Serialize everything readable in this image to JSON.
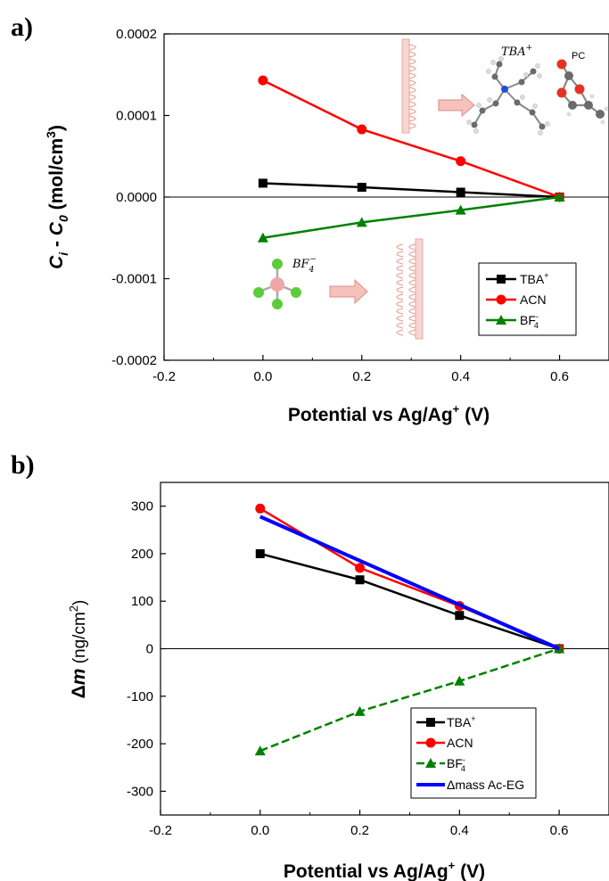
{
  "chart_data": [
    {
      "panel": "a)",
      "type": "line",
      "xlabel": "Potential vs Ag/Ag",
      "xlabel_sup": "+",
      "xlabel_end": " (V)",
      "ylabel_parts": [
        "C",
        "i",
        " - ",
        "C",
        "0",
        " (mol/cm",
        "3",
        ")"
      ],
      "xlim": [
        -0.2,
        0.7
      ],
      "ylim": [
        -0.0002,
        0.0002
      ],
      "xticks": [
        -0.2,
        0.0,
        0.2,
        0.4,
        0.6
      ],
      "xtick_labels": [
        "-0.2",
        "0.0",
        "0.2",
        "0.4",
        "0.6"
      ],
      "yticks": [
        -0.0002,
        -0.0001,
        0.0,
        0.0001,
        0.0002
      ],
      "ytick_labels": [
        "-0.0002",
        "-0.0001",
        "0.0000",
        "0.0001",
        "0.0002"
      ],
      "zero_line": true,
      "legend_position": "lower-right",
      "series": [
        {
          "name": "TBA",
          "name_sup": "+",
          "name_sub": "",
          "color": "#000000",
          "marker": "square",
          "x": [
            0.0,
            0.2,
            0.4,
            0.6
          ],
          "y": [
            1.7e-05,
            1.2e-05,
            6e-06,
            0.0
          ]
        },
        {
          "name": "ACN",
          "name_sup": "",
          "name_sub": "",
          "color": "#ff0000",
          "marker": "circle",
          "x": [
            0.0,
            0.2,
            0.4,
            0.6
          ],
          "y": [
            0.000143,
            8.3e-05,
            4.4e-05,
            0.0
          ]
        },
        {
          "name": "BF",
          "name_sup": "-",
          "name_sub": "4",
          "color": "#008000",
          "marker": "triangle",
          "x": [
            0.0,
            0.2,
            0.4,
            0.6
          ],
          "y": [
            -5e-05,
            -3.1e-05,
            -1.6e-05,
            0.0
          ]
        }
      ],
      "insets": {
        "tba_label": "TBA",
        "tba_sup": "+",
        "pc_label": "PC",
        "bf4_label": "BF",
        "bf4_sub": "4",
        "bf4_sup": "−"
      }
    },
    {
      "panel": "b)",
      "type": "line",
      "xlabel": "Potential vs Ag/Ag",
      "xlabel_sup": "+",
      "xlabel_end": " (V)",
      "ylabel_parts": [
        "Δ",
        "m",
        " (ng/cm",
        "2",
        ")"
      ],
      "xlim": [
        -0.2,
        0.7
      ],
      "ylim": [
        -350,
        350
      ],
      "xticks": [
        -0.2,
        0.0,
        0.2,
        0.4,
        0.6
      ],
      "xtick_labels": [
        "-0.2",
        "0.0",
        "0.2",
        "0.4",
        "0.6"
      ],
      "yticks": [
        -300,
        -200,
        -100,
        0,
        100,
        200,
        300
      ],
      "ytick_labels": [
        "-300",
        "-200",
        "-100",
        "0",
        "100",
        "200",
        "300"
      ],
      "zero_line": true,
      "legend_position": "lower-right",
      "series": [
        {
          "name": "TBA",
          "name_sup": "+",
          "name_sub": "",
          "color": "#000000",
          "marker": "square",
          "x": [
            0.0,
            0.2,
            0.4,
            0.6
          ],
          "y": [
            200,
            145,
            70,
            0
          ]
        },
        {
          "name": "ACN",
          "name_sup": "",
          "name_sub": "",
          "color": "#ff0000",
          "marker": "circle",
          "x": [
            0.0,
            0.2,
            0.4,
            0.6
          ],
          "y": [
            295,
            170,
            90,
            0
          ]
        },
        {
          "name": "BF",
          "name_sup": "-",
          "name_sub": "4",
          "color": "#008000",
          "marker": "triangle",
          "x": [
            0.0,
            0.2,
            0.4,
            0.6
          ],
          "y": [
            -215,
            -132,
            -68,
            0
          ]
        },
        {
          "name": "Δmass Ac-EG",
          "name_sup": "",
          "name_sub": "",
          "color": "#0000ff",
          "marker": "none",
          "line_width": "thick",
          "x": [
            0.0,
            0.6
          ],
          "y": [
            278,
            0
          ]
        }
      ]
    }
  ]
}
